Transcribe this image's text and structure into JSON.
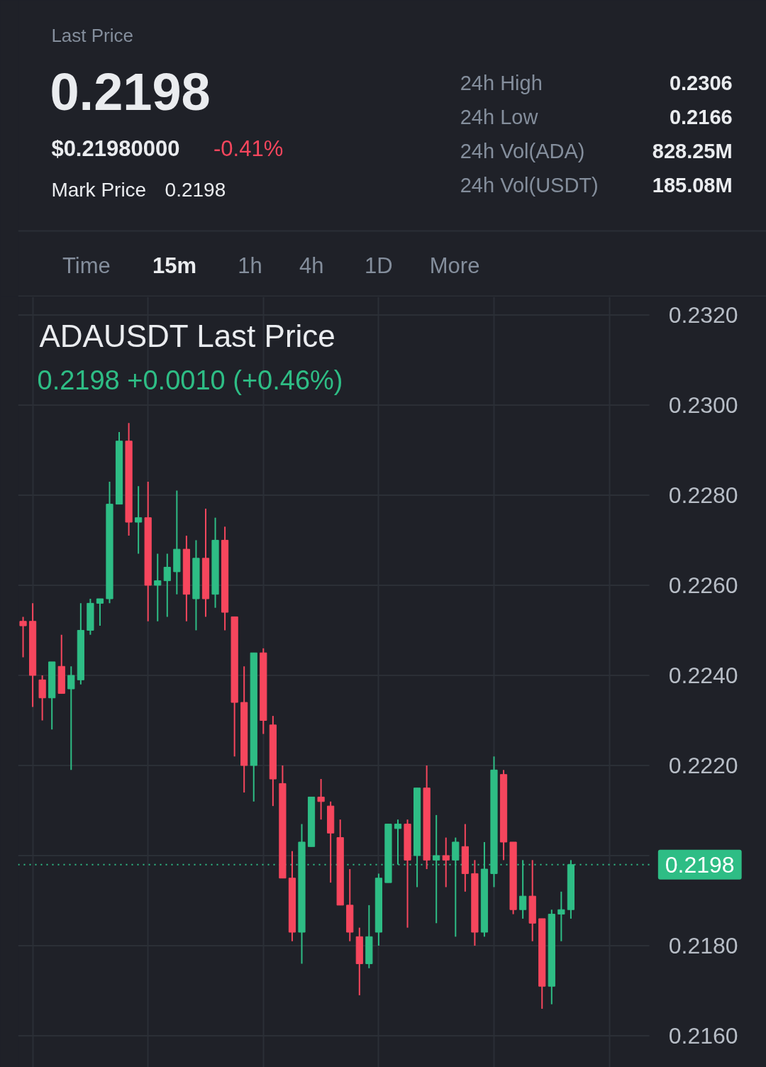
{
  "chart_data": {
    "type": "candlestick",
    "title": "ADAUSDT Last Price",
    "subtitle": "0.2198  +0.0010 (+0.46%)",
    "categories": [
      null,
      null,
      null,
      null,
      null,
      null,
      null,
      null,
      null,
      null,
      null,
      null,
      null,
      null,
      null,
      null,
      null,
      null,
      null,
      null,
      null,
      null,
      null,
      null,
      null,
      null,
      null,
      null,
      null,
      null,
      null,
      null,
      null,
      null,
      null,
      null,
      null,
      null,
      null,
      null,
      null,
      null,
      null,
      null,
      null,
      null,
      null,
      null,
      null,
      null,
      null,
      null,
      null,
      null,
      null,
      null,
      null,
      null
    ],
    "ohlc": [
      [
        0.2252,
        0.2253,
        0.2244,
        0.2251
      ],
      [
        0.2252,
        0.2256,
        0.2233,
        0.224
      ],
      [
        0.2239,
        0.224,
        0.223,
        0.2235
      ],
      [
        0.2235,
        0.2243,
        0.2228,
        0.2243
      ],
      [
        0.2242,
        0.2249,
        0.2236,
        0.2236
      ],
      [
        0.2237,
        0.2242,
        0.2219,
        0.224
      ],
      [
        0.2239,
        0.2256,
        0.2238,
        0.225
      ],
      [
        0.225,
        0.2257,
        0.2249,
        0.2256
      ],
      [
        0.2256,
        0.2257,
        0.2251,
        0.2257
      ],
      [
        0.2257,
        0.2283,
        0.2256,
        0.2278
      ],
      [
        0.2278,
        0.2294,
        0.2278,
        0.2292
      ],
      [
        0.2292,
        0.2296,
        0.2271,
        0.2274
      ],
      [
        0.2274,
        0.2282,
        0.2267,
        0.2275
      ],
      [
        0.2275,
        0.2283,
        0.2252,
        0.226
      ],
      [
        0.226,
        0.2267,
        0.2252,
        0.2261
      ],
      [
        0.2261,
        0.2267,
        0.2253,
        0.2264
      ],
      [
        0.2263,
        0.2281,
        0.2258,
        0.2268
      ],
      [
        0.2268,
        0.2271,
        0.2252,
        0.2258
      ],
      [
        0.2257,
        0.227,
        0.225,
        0.2266
      ],
      [
        0.2266,
        0.2277,
        0.2253,
        0.2257
      ],
      [
        0.2258,
        0.2275,
        0.2255,
        0.227
      ],
      [
        0.227,
        0.2273,
        0.225,
        0.2254
      ],
      [
        0.2253,
        0.2253,
        0.2222,
        0.2234
      ],
      [
        0.2234,
        0.2242,
        0.2214,
        0.222
      ],
      [
        0.222,
        0.2245,
        0.2212,
        0.2245
      ],
      [
        0.2245,
        0.2246,
        0.2227,
        0.223
      ],
      [
        0.2229,
        0.2231,
        0.2211,
        0.2217
      ],
      [
        0.2216,
        0.222,
        0.2195,
        0.2195
      ],
      [
        0.2195,
        0.2201,
        0.2181,
        0.2183
      ],
      [
        0.2183,
        0.2207,
        0.2176,
        0.2203
      ],
      [
        0.2202,
        0.2213,
        0.2202,
        0.2213
      ],
      [
        0.2213,
        0.2217,
        0.2208,
        0.2212
      ],
      [
        0.2211,
        0.2212,
        0.2194,
        0.2205
      ],
      [
        0.2204,
        0.2208,
        0.2189,
        0.2189
      ],
      [
        0.2189,
        0.2197,
        0.2181,
        0.2183
      ],
      [
        0.2182,
        0.2184,
        0.2169,
        0.2176
      ],
      [
        0.2176,
        0.2189,
        0.2175,
        0.2182
      ],
      [
        0.2183,
        0.2196,
        0.218,
        0.2195
      ],
      [
        0.2194,
        0.2207,
        0.2194,
        0.2207
      ],
      [
        0.2206,
        0.2208,
        0.2198,
        0.2207
      ],
      [
        0.2207,
        0.2208,
        0.2184,
        0.2199
      ],
      [
        0.22,
        0.2215,
        0.2193,
        0.2215
      ],
      [
        0.2215,
        0.222,
        0.2197,
        0.2199
      ],
      [
        0.2199,
        0.2209,
        0.2185,
        0.22
      ],
      [
        0.22,
        0.2204,
        0.2193,
        0.2199
      ],
      [
        0.2199,
        0.2204,
        0.2182,
        0.2203
      ],
      [
        0.2202,
        0.2207,
        0.2192,
        0.2196
      ],
      [
        0.2196,
        0.2199,
        0.218,
        0.2183
      ],
      [
        0.2183,
        0.2203,
        0.2182,
        0.2197
      ],
      [
        0.2196,
        0.2222,
        0.2193,
        0.2219
      ],
      [
        0.2218,
        0.2219,
        0.2199,
        0.2203
      ],
      [
        0.2203,
        0.2203,
        0.2187,
        0.2188
      ],
      [
        0.2188,
        0.2199,
        0.2186,
        0.2191
      ],
      [
        0.2191,
        0.2199,
        0.2181,
        0.2185
      ],
      [
        0.2186,
        0.2186,
        0.2166,
        0.2171
      ],
      [
        0.2171,
        0.2188,
        0.2167,
        0.2187
      ],
      [
        0.2187,
        0.2192,
        0.2181,
        0.2188
      ],
      [
        0.2188,
        0.2199,
        0.2186,
        0.2198
      ]
    ],
    "colors": [
      "#f6465d",
      "#f6465d",
      "#f6465d",
      "#2ebd85",
      "#f6465d",
      "#2ebd85",
      "#2ebd85",
      "#2ebd85",
      "#2ebd85",
      "#2ebd85",
      "#2ebd85",
      "#f6465d",
      "#2ebd85",
      "#f6465d",
      "#2ebd85",
      "#2ebd85",
      "#2ebd85",
      "#f6465d",
      "#2ebd85",
      "#f6465d",
      "#2ebd85",
      "#f6465d",
      "#f6465d",
      "#f6465d",
      "#2ebd85",
      "#f6465d",
      "#f6465d",
      "#f6465d",
      "#f6465d",
      "#2ebd85",
      "#2ebd85",
      "#f6465d",
      "#f6465d",
      "#f6465d",
      "#f6465d",
      "#f6465d",
      "#2ebd85",
      "#2ebd85",
      "#2ebd85",
      "#2ebd85",
      "#f6465d",
      "#2ebd85",
      "#f6465d",
      "#2ebd85",
      "#f6465d",
      "#2ebd85",
      "#f6465d",
      "#f6465d",
      "#2ebd85",
      "#2ebd85",
      "#f6465d",
      "#f6465d",
      "#2ebd85",
      "#f6465d",
      "#f6465d",
      "#2ebd85",
      "#2ebd85",
      "#2ebd85"
    ],
    "ylim": [
      0.2153,
      0.2324
    ],
    "yticks": [
      {
        "value": 0.216,
        "label": "0.2160"
      },
      {
        "value": 0.218,
        "label": "0.2180"
      },
      {
        "value": 0.22,
        "label": null
      },
      {
        "value": 0.222,
        "label": "0.2220"
      },
      {
        "value": 0.224,
        "label": "0.2240"
      },
      {
        "value": 0.226,
        "label": "0.2260"
      },
      {
        "value": 0.228,
        "label": "0.2280"
      },
      {
        "value": 0.23,
        "label": "0.2300"
      },
      {
        "value": 0.232,
        "label": "0.2320"
      }
    ],
    "ref_lines": [
      {
        "axis": "y",
        "value": 0.2198,
        "label": "0.2198",
        "color": "#2ebd85",
        "line_style": "dotted"
      }
    ],
    "grid": true,
    "tick_labels": "y",
    "annotations": [
      "Last Price",
      "0.2198",
      "$0.21980000",
      "-0.41%",
      "Mark Price",
      "0.2198",
      "24h High",
      "0.2306",
      "24h Low",
      "0.2166",
      "24h Vol(ADA)",
      "828.25M",
      "24h Vol(USDT)",
      "185.08M",
      "Time",
      "15m",
      "1h",
      "4h",
      "1D",
      "More"
    ]
  }
}
